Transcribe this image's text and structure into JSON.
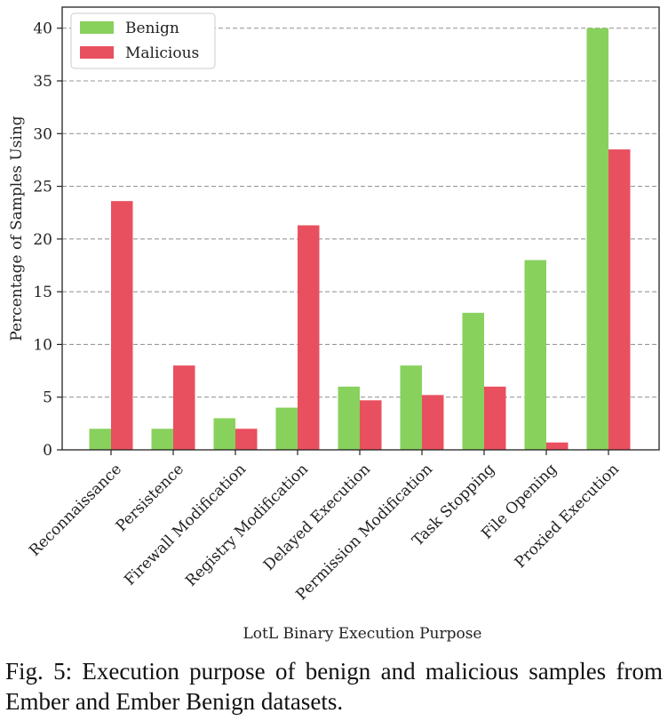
{
  "chart_data": {
    "type": "bar",
    "title": "",
    "xlabel": "LotL Binary Execution Purpose",
    "ylabel": "Percentage of Samples Using",
    "ylim": [
      0,
      42
    ],
    "yticks": [
      0,
      5,
      10,
      15,
      20,
      25,
      30,
      35,
      40
    ],
    "grid": "horizontal dashed",
    "legend_position": "top-left",
    "categories": [
      "Reconnaissance",
      "Persistence",
      "Firewall Modification",
      "Registry Modification",
      "Delayed Execution",
      "Permission Modification",
      "Task Stopping",
      "File Opening",
      "Proxied Execution"
    ],
    "series": [
      {
        "name": "Benign",
        "color": "#88d15d",
        "values": [
          2,
          2,
          3,
          4,
          6,
          8,
          13,
          18,
          40
        ]
      },
      {
        "name": "Malicious",
        "color": "#e9505f",
        "values": [
          23.6,
          8,
          2,
          21.3,
          4.7,
          5.2,
          6,
          0.7,
          28.5
        ]
      }
    ]
  },
  "caption": "Fig. 5: Execution purpose of benign and malicious samples from Ember and Ember Benign datasets."
}
